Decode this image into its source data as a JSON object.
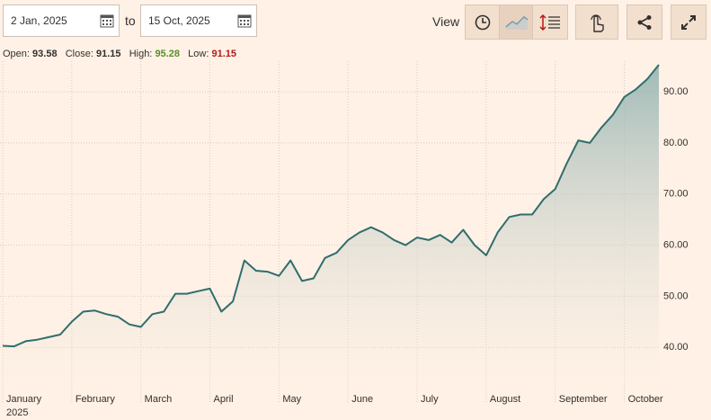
{
  "controls": {
    "start_date": "2 Jan, 2025",
    "to": "to",
    "end_date": "15 Oct, 2025",
    "view": "View"
  },
  "ohlc": {
    "open_label": "Open:",
    "open": 93.58,
    "close_label": "Close:",
    "close": 91.15,
    "high_label": "High:",
    "high": 95.28,
    "low_label": "Low:",
    "low": 91.15
  },
  "chart_data": {
    "type": "area",
    "categories": [
      "January",
      null,
      null,
      null,
      null,
      null,
      "February",
      null,
      null,
      null,
      null,
      null,
      "March",
      null,
      null,
      null,
      null,
      null,
      "April",
      null,
      null,
      null,
      null,
      null,
      "May",
      null,
      null,
      null,
      null,
      null,
      "June",
      null,
      null,
      null,
      null,
      null,
      "July",
      null,
      null,
      null,
      null,
      null,
      "August",
      null,
      null,
      null,
      null,
      null,
      "September",
      null,
      null,
      null,
      null,
      null,
      "October",
      null,
      null,
      null
    ],
    "year_label": "2025",
    "series": [
      {
        "color": "#2f6e6d",
        "values": [
          40.3,
          40.2,
          41.2,
          41.5,
          42.0,
          42.5,
          45.0,
          47.0,
          47.2,
          46.5,
          46.0,
          44.5,
          44.0,
          46.5,
          47.0,
          50.5,
          50.5,
          51.0,
          51.5,
          47.0,
          49.0,
          57.0,
          55.0,
          54.8,
          54.0,
          57.0,
          53.0,
          53.5,
          57.5,
          58.5,
          61.0,
          62.5,
          63.5,
          62.5,
          61.0,
          60.0,
          61.5,
          61.0,
          62.0,
          60.5,
          63.0,
          60.0,
          58.0,
          62.5,
          65.5,
          66.0,
          66.0,
          69.0,
          71.0,
          76.0,
          80.5,
          80.0,
          83.0,
          85.5,
          89.0,
          90.5,
          92.5,
          95.3
        ]
      }
    ],
    "ylim": [
      32.3,
      96
    ],
    "yticks": [
      {
        "value": 40,
        "label": "40.00"
      },
      {
        "value": 50,
        "label": "50.00"
      },
      {
        "value": 60,
        "label": "60.00"
      },
      {
        "value": 70,
        "label": "70.00"
      },
      {
        "value": 80,
        "label": "80.00"
      },
      {
        "value": 90,
        "label": "90.00"
      }
    ],
    "grid": true
  }
}
